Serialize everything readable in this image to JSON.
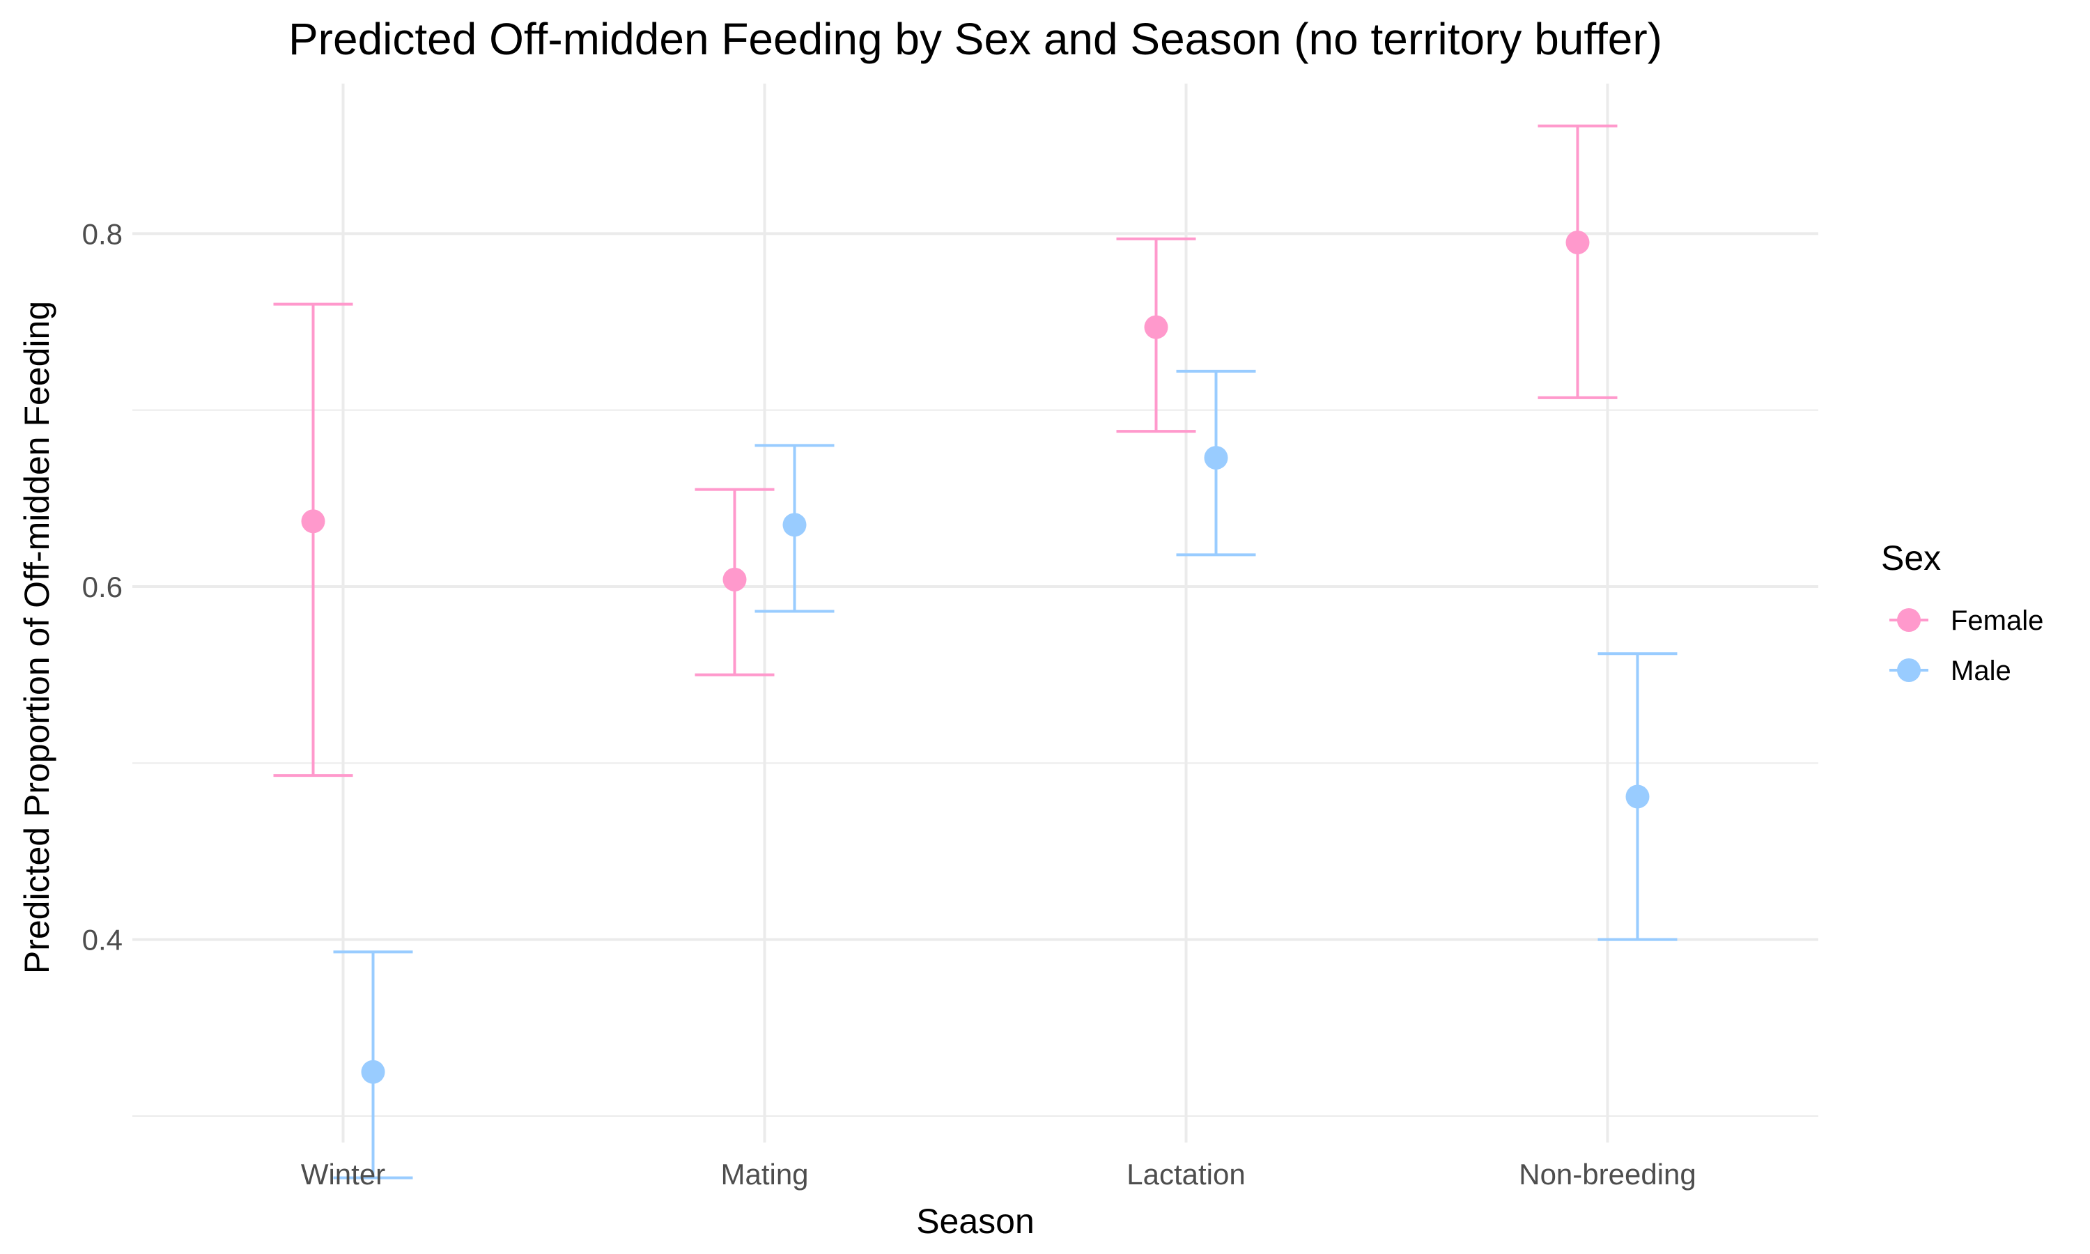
{
  "chart_data": {
    "type": "scatter",
    "title": "Predicted Off-midden Feeding by Sex and Season (no territory buffer)",
    "xlabel": "Season",
    "ylabel": "Predicted Proportion of Off-midden Feeding",
    "categories": [
      "Winter",
      "Mating",
      "Lactation",
      "Non-breeding"
    ],
    "ylim": [
      0.285,
      0.885
    ],
    "yticks": [
      0.4,
      0.6,
      0.8
    ],
    "ytick_labels": [
      "0.4",
      "0.6",
      "0.8"
    ],
    "yminor": [
      0.3,
      0.5,
      0.7
    ],
    "grid": true,
    "legend": {
      "title": "Sex",
      "position": "right"
    },
    "series": [
      {
        "name": "Female",
        "color": "#ff99cc",
        "values": [
          0.637,
          0.604,
          0.747,
          0.795
        ],
        "lower": [
          0.493,
          0.55,
          0.688,
          0.707
        ],
        "upper": [
          0.76,
          0.655,
          0.797,
          0.861
        ]
      },
      {
        "name": "Male",
        "color": "#99ccff",
        "values": [
          0.325,
          0.635,
          0.673,
          0.481
        ],
        "lower": [
          0.265,
          0.586,
          0.618,
          0.4
        ],
        "upper": [
          0.393,
          0.68,
          0.722,
          0.562
        ]
      }
    ]
  }
}
